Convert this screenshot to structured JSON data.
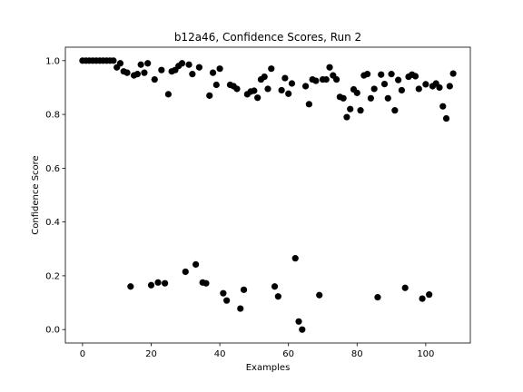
{
  "chart_data": {
    "type": "scatter",
    "title": "b12a46, Confidence Scores, Run 2",
    "xlabel": "Examples",
    "ylabel": "Confidence Score",
    "xlim": [
      -5,
      113
    ],
    "ylim": [
      -0.05,
      1.05
    ],
    "xticks": [
      0,
      20,
      40,
      60,
      80,
      100
    ],
    "yticks": [
      0.0,
      0.2,
      0.4,
      0.6,
      0.8,
      1.0
    ],
    "xtick_labels": [
      "0",
      "20",
      "40",
      "60",
      "80",
      "100"
    ],
    "ytick_labels": [
      "0.0",
      "0.2",
      "0.4",
      "0.6",
      "0.8",
      "1.0"
    ],
    "grid": false,
    "marker_color": "#000000",
    "x": [
      0,
      1,
      2,
      3,
      4,
      5,
      6,
      7,
      8,
      9,
      10,
      11,
      12,
      13,
      14,
      15,
      16,
      17,
      18,
      19,
      20,
      21,
      22,
      23,
      24,
      25,
      26,
      27,
      28,
      29,
      30,
      31,
      32,
      33,
      34,
      35,
      36,
      37,
      38,
      39,
      40,
      41,
      42,
      43,
      44,
      45,
      46,
      47,
      48,
      49,
      50,
      51,
      52,
      53,
      54,
      55,
      56,
      57,
      58,
      59,
      60,
      61,
      62,
      63,
      64,
      65,
      66,
      67,
      68,
      69,
      70,
      71,
      72,
      73,
      74,
      75,
      76,
      77,
      78,
      79,
      80,
      81,
      82,
      83,
      84,
      85,
      86,
      87,
      88,
      89,
      90,
      91,
      92,
      93,
      94,
      95,
      96,
      97,
      98,
      99,
      100,
      101,
      102,
      103,
      104,
      105,
      106,
      107,
      108
    ],
    "y": [
      1.0,
      1.0,
      1.0,
      1.0,
      1.0,
      1.0,
      1.0,
      1.0,
      1.0,
      1.0,
      0.975,
      0.99,
      0.96,
      0.955,
      0.16,
      0.945,
      0.95,
      0.985,
      0.955,
      0.99,
      0.165,
      0.93,
      0.175,
      0.965,
      0.172,
      0.875,
      0.96,
      0.965,
      0.98,
      0.99,
      0.215,
      0.985,
      0.95,
      0.242,
      0.975,
      0.175,
      0.172,
      0.87,
      0.955,
      0.91,
      0.97,
      0.135,
      0.108,
      0.91,
      0.905,
      0.895,
      0.078,
      0.148,
      0.875,
      0.885,
      0.888,
      0.862,
      0.93,
      0.94,
      0.895,
      0.97,
      0.16,
      0.123,
      0.89,
      0.935,
      0.877,
      0.915,
      0.265,
      0.03,
      0.0,
      0.905,
      0.838,
      0.93,
      0.925,
      0.128,
      0.93,
      0.93,
      0.975,
      0.945,
      0.93,
      0.865,
      0.86,
      0.79,
      0.82,
      0.893,
      0.88,
      0.815,
      0.945,
      0.95,
      0.86,
      0.895,
      0.12,
      0.948,
      0.913,
      0.86,
      0.95,
      0.815,
      0.928,
      0.89,
      0.155,
      0.94,
      0.948,
      0.942,
      0.895,
      0.115,
      0.912,
      0.13,
      0.905,
      0.915,
      0.9,
      0.83,
      0.785,
      0.905,
      0.952
    ]
  }
}
